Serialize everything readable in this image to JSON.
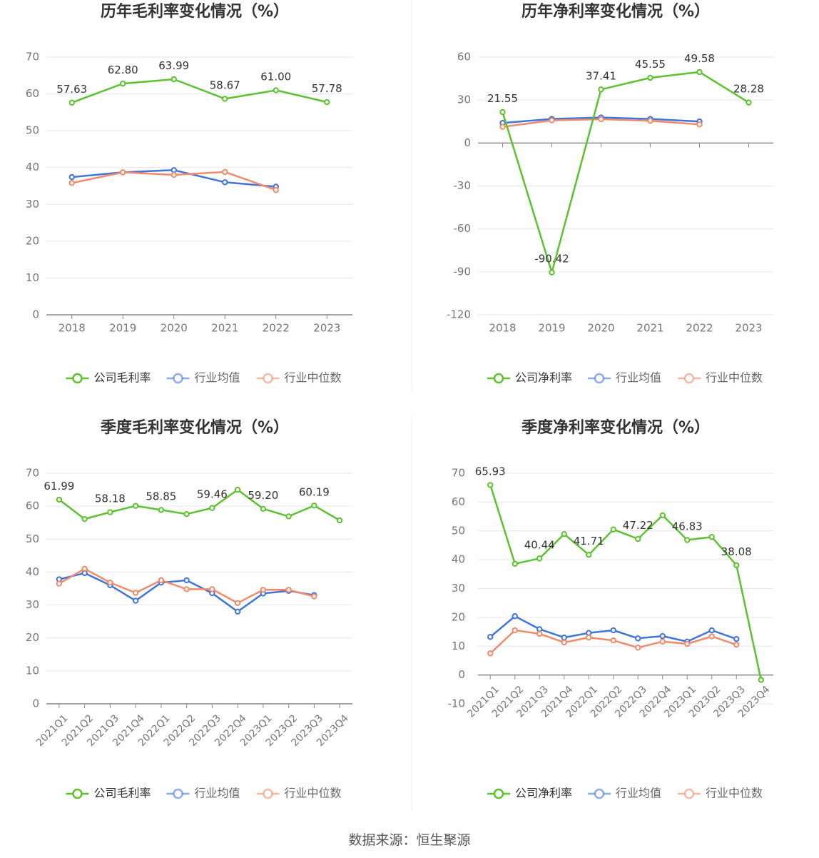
{
  "colors": {
    "company": "#5cc22d",
    "avg": "#3f74de",
    "median": "#f28a6a",
    "grid": "#e6e6ef",
    "axis": "#888888",
    "tick_text": "#777777",
    "title": "#333333",
    "divider": "#eeeeee"
  },
  "source": "数据来源：恒生聚源",
  "chart_data": [
    {
      "type": "line",
      "title": "历年毛利率变化情况（%）",
      "categories": [
        "2018",
        "2019",
        "2020",
        "2021",
        "2022",
        "2023"
      ],
      "ylim": [
        0,
        70
      ],
      "yticks": [
        0,
        10,
        20,
        30,
        40,
        50,
        60,
        70
      ],
      "rotate_x": false,
      "series": [
        {
          "name": "公司毛利率",
          "role": "company",
          "values": [
            57.63,
            62.8,
            63.99,
            58.67,
            61.0,
            57.78
          ],
          "labels": [
            "57.63",
            "62.80",
            "63.99",
            "58.67",
            "61.00",
            "57.78"
          ]
        },
        {
          "name": "行业均值",
          "role": "avg",
          "values": [
            37.4,
            38.7,
            39.3,
            36.0,
            34.8,
            null
          ]
        },
        {
          "name": "行业中位数",
          "role": "median",
          "values": [
            35.8,
            38.7,
            38.0,
            38.8,
            33.9,
            null
          ]
        }
      ]
    },
    {
      "type": "line",
      "title": "历年净利率变化情况（%）",
      "categories": [
        "2018",
        "2019",
        "2020",
        "2021",
        "2022",
        "2023"
      ],
      "ylim": [
        -120,
        60
      ],
      "yticks": [
        -120,
        -90,
        -60,
        -30,
        0,
        30,
        60
      ],
      "rotate_x": false,
      "series": [
        {
          "name": "公司净利率",
          "role": "company",
          "values": [
            21.55,
            -90.42,
            37.41,
            45.55,
            49.58,
            28.28
          ],
          "labels": [
            "21.55",
            "-90.42",
            "37.41",
            "45.55",
            "49.58",
            "28.28"
          ]
        },
        {
          "name": "行业均值",
          "role": "avg",
          "values": [
            14.0,
            16.8,
            17.8,
            16.8,
            15.0,
            null
          ]
        },
        {
          "name": "行业中位数",
          "role": "median",
          "values": [
            11.3,
            15.8,
            16.6,
            15.5,
            13.0,
            null
          ]
        }
      ]
    },
    {
      "type": "line",
      "title": "季度毛利率变化情况（%）",
      "categories": [
        "2021Q1",
        "2021Q2",
        "2021Q3",
        "2021Q4",
        "2022Q1",
        "2022Q2",
        "2022Q3",
        "2022Q4",
        "2023Q1",
        "2023Q2",
        "2023Q3",
        "2023Q4"
      ],
      "ylim": [
        0,
        70
      ],
      "yticks": [
        0,
        10,
        20,
        30,
        40,
        50,
        60,
        70
      ],
      "rotate_x": true,
      "series": [
        {
          "name": "公司毛利率",
          "role": "company",
          "values": [
            61.99,
            56.1,
            58.18,
            60.1,
            58.85,
            57.6,
            59.46,
            65.0,
            59.2,
            56.9,
            60.19,
            55.7
          ],
          "labels": [
            "61.99",
            null,
            "58.18",
            null,
            "58.85",
            null,
            "59.46",
            null,
            "59.20",
            null,
            "60.19",
            null
          ]
        },
        {
          "name": "行业均值",
          "role": "avg",
          "values": [
            37.8,
            39.7,
            36.0,
            31.3,
            36.8,
            37.5,
            33.6,
            28.0,
            33.5,
            34.3,
            33.0,
            null
          ]
        },
        {
          "name": "行业中位数",
          "role": "median",
          "values": [
            36.5,
            41.0,
            36.8,
            33.7,
            37.5,
            34.8,
            34.8,
            30.6,
            34.6,
            34.6,
            32.6,
            null
          ]
        }
      ]
    },
    {
      "type": "line",
      "title": "季度净利率变化情况（%）",
      "categories": [
        "2021Q1",
        "2021Q2",
        "2021Q3",
        "2021Q4",
        "2022Q1",
        "2022Q2",
        "2022Q3",
        "2022Q4",
        "2023Q1",
        "2023Q2",
        "2023Q3",
        "2023Q4"
      ],
      "ylim": [
        -10,
        70
      ],
      "yticks": [
        -10,
        0,
        10,
        20,
        30,
        40,
        50,
        60,
        70
      ],
      "rotate_x": true,
      "series": [
        {
          "name": "公司净利率",
          "role": "company",
          "values": [
            65.93,
            38.6,
            40.44,
            48.9,
            41.71,
            50.5,
            47.22,
            55.4,
            46.83,
            47.9,
            38.08,
            -1.7
          ],
          "labels": [
            "65.93",
            null,
            "40.44",
            null,
            "41.71",
            null,
            "47.22",
            null,
            "46.83",
            null,
            "38.08",
            null
          ]
        },
        {
          "name": "行业均值",
          "role": "avg",
          "values": [
            13.2,
            20.4,
            15.9,
            13.0,
            14.6,
            15.5,
            12.7,
            13.5,
            11.6,
            15.5,
            12.5,
            null
          ]
        },
        {
          "name": "行业中位数",
          "role": "median",
          "values": [
            7.5,
            15.5,
            14.3,
            11.3,
            13.0,
            12.0,
            9.5,
            11.6,
            10.8,
            13.4,
            10.5,
            null
          ]
        }
      ]
    }
  ]
}
